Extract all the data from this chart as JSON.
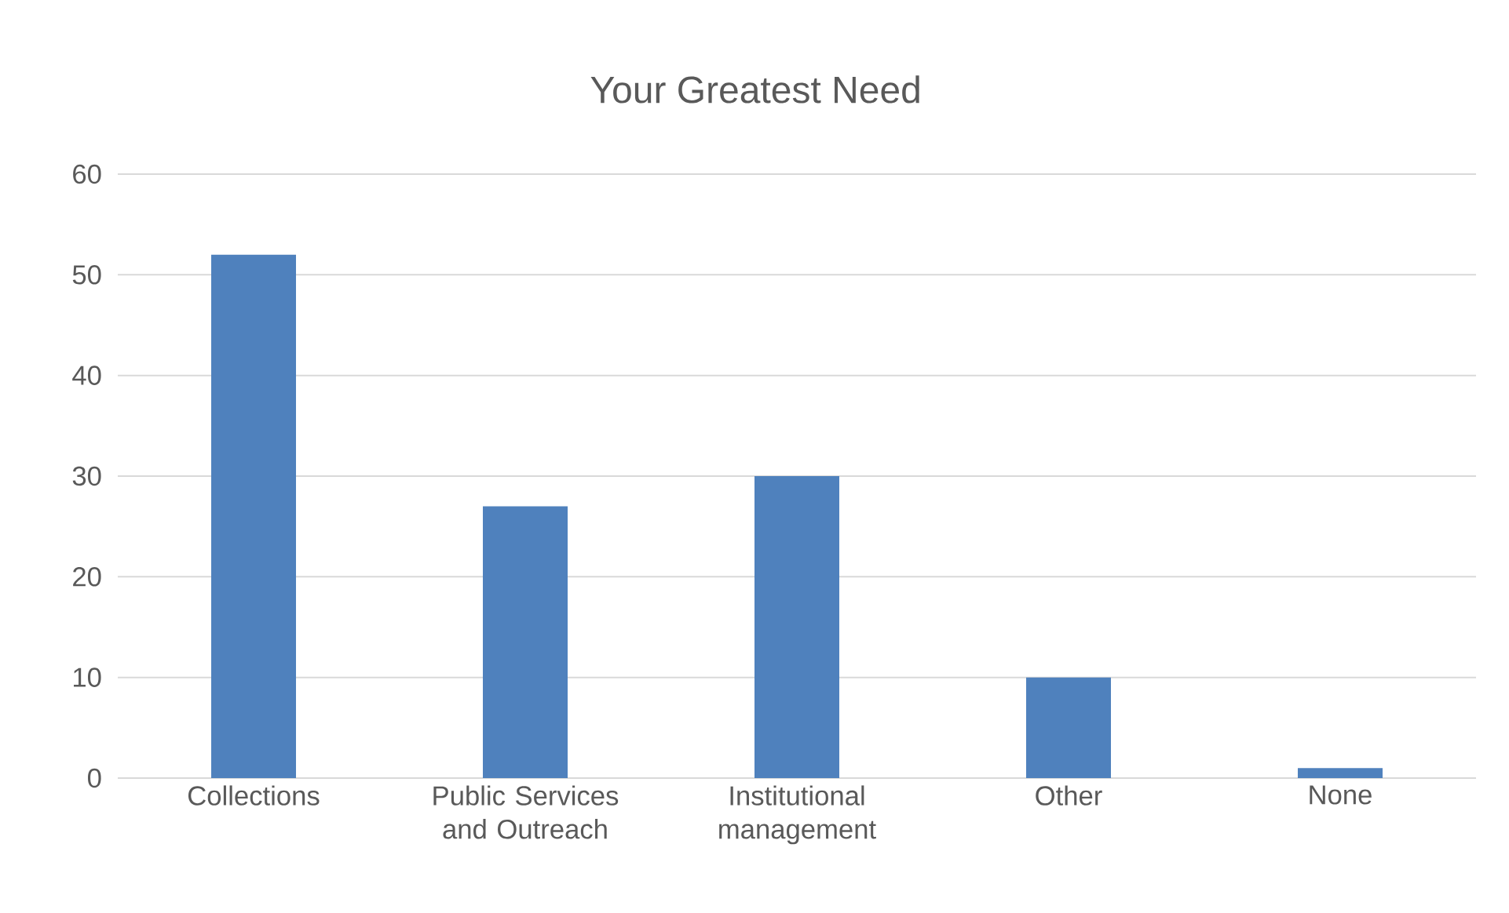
{
  "chart_data": {
    "type": "bar",
    "title": "Your Greatest Need",
    "categories": [
      "Collections",
      "Public Services and Outreach",
      "Institutional management",
      "Other",
      "None"
    ],
    "values": [
      52,
      27,
      30,
      10,
      1
    ],
    "color": "#4f81bd",
    "ylim": [
      0,
      60
    ],
    "yticks": [
      0,
      10,
      20,
      30,
      40,
      50,
      60
    ],
    "grid": "y"
  }
}
